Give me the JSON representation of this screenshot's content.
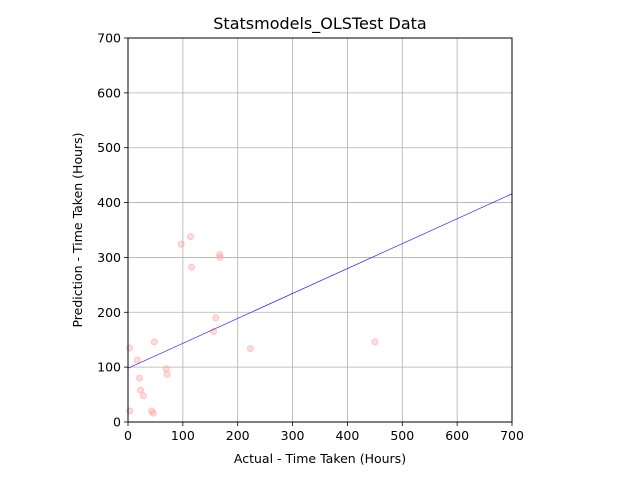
{
  "chart_data": {
    "type": "scatter",
    "title": "Statsmodels_OLSTest Data",
    "xlabel": "Actual - Time Taken (Hours)",
    "ylabel": "Prediction - Time Taken (Hours)",
    "xlim": [
      0,
      700
    ],
    "ylim": [
      0,
      700
    ],
    "xticks": [
      "0",
      "100",
      "200",
      "300",
      "400",
      "500",
      "600",
      "700"
    ],
    "yticks": [
      "0",
      "100",
      "200",
      "300",
      "400",
      "500",
      "600",
      "700"
    ],
    "grid": true,
    "point_color": "#ff9999",
    "line_color": "#0000ff",
    "points": [
      {
        "x": 3,
        "y": 135
      },
      {
        "x": 3,
        "y": 20
      },
      {
        "x": 17,
        "y": 113
      },
      {
        "x": 21,
        "y": 80
      },
      {
        "x": 23,
        "y": 58
      },
      {
        "x": 28,
        "y": 48
      },
      {
        "x": 43,
        "y": 20
      },
      {
        "x": 46,
        "y": 16
      },
      {
        "x": 48,
        "y": 146
      },
      {
        "x": 70,
        "y": 97
      },
      {
        "x": 71,
        "y": 87
      },
      {
        "x": 97,
        "y": 324
      },
      {
        "x": 114,
        "y": 338
      },
      {
        "x": 116,
        "y": 282
      },
      {
        "x": 156,
        "y": 165
      },
      {
        "x": 160,
        "y": 190
      },
      {
        "x": 167,
        "y": 305
      },
      {
        "x": 168,
        "y": 300
      },
      {
        "x": 223,
        "y": 134
      },
      {
        "x": 450,
        "y": 146
      }
    ],
    "regression_line": {
      "x": [
        0,
        700
      ],
      "y": [
        98,
        416
      ]
    }
  }
}
